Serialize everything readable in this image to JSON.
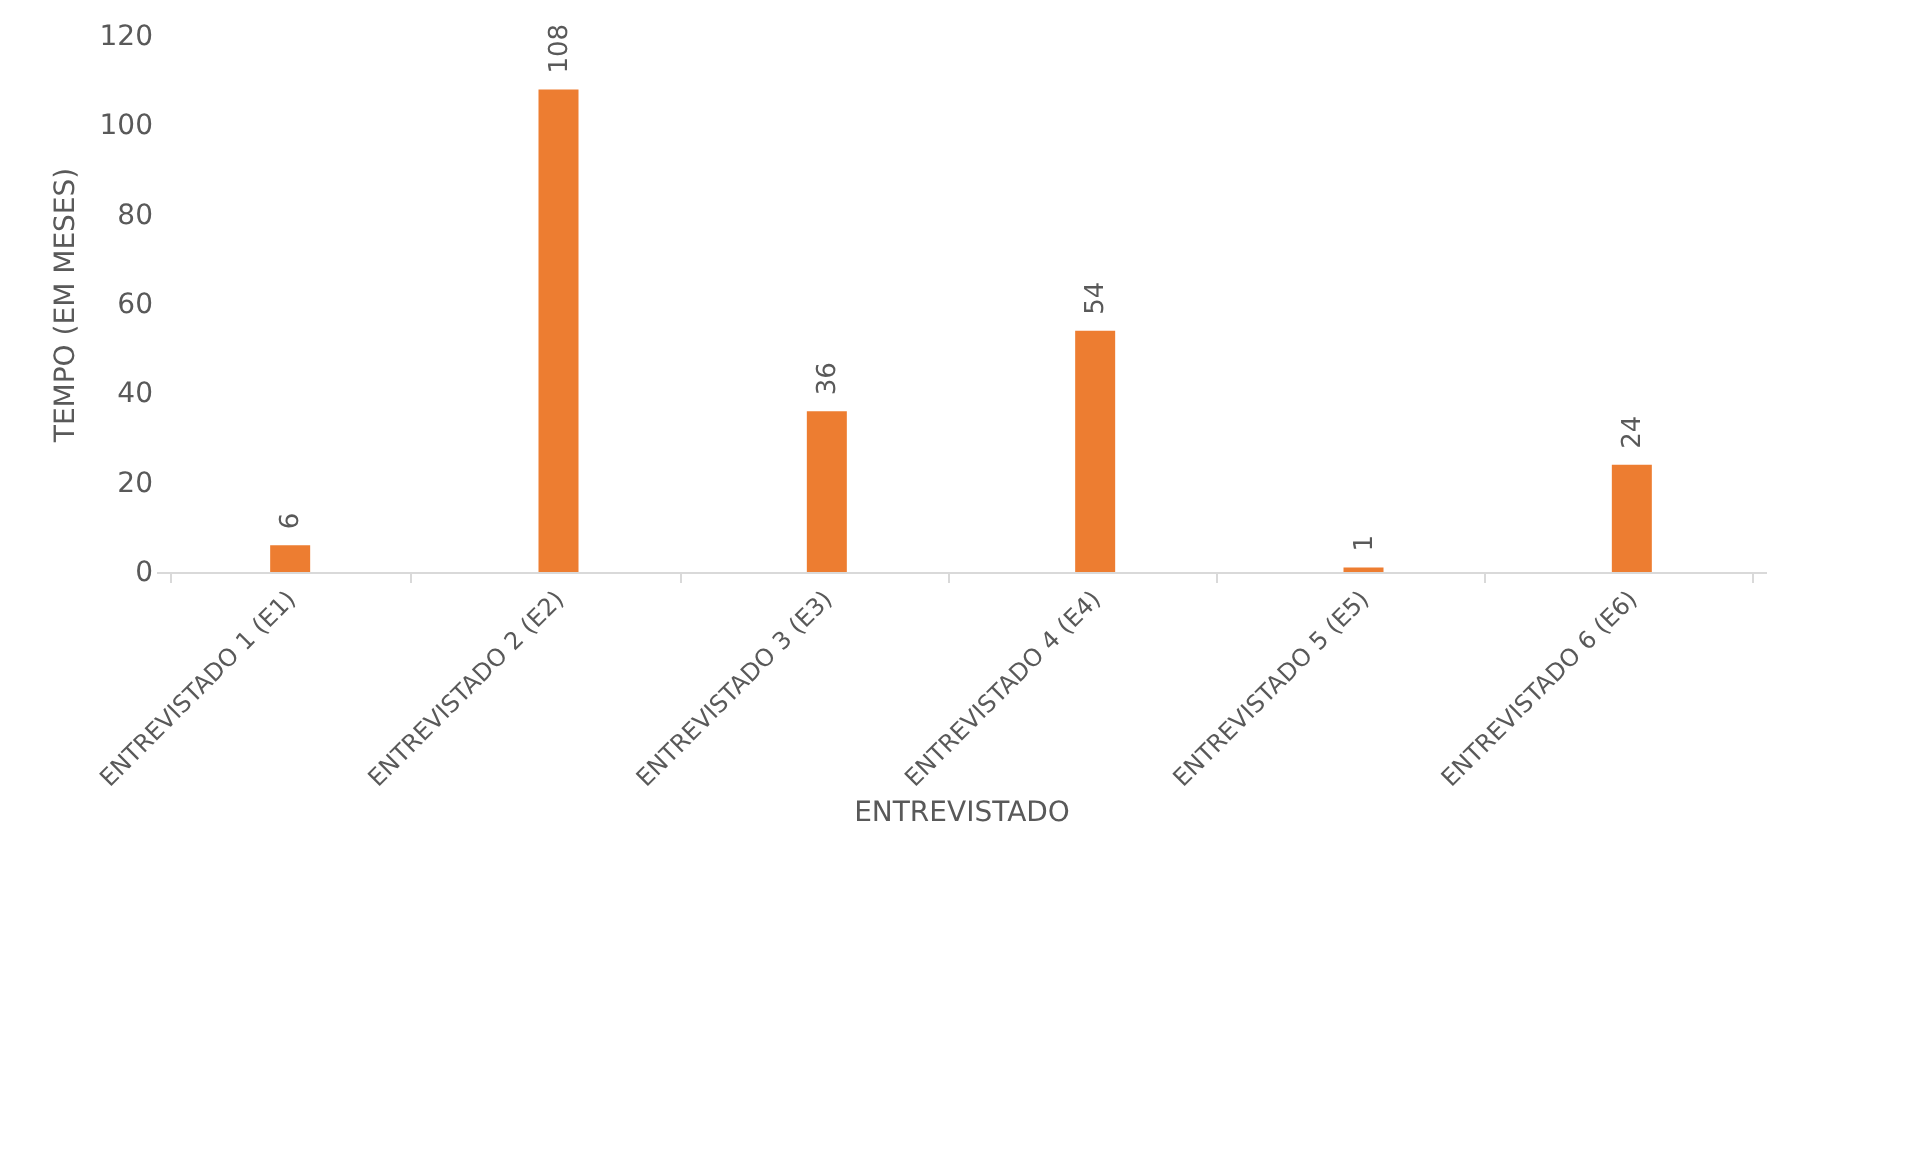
{
  "chart_data": {
    "type": "bar",
    "xlabel": "ENTREVISTADO",
    "ylabel": "TEMPO (EM MESES)",
    "categories": [
      "ENTREVISTADO 1 (E1)",
      "ENTREVISTADO 2 (E2)",
      "ENTREVISTADO 3 (E3)",
      "ENTREVISTADO 4 (E4)",
      "ENTREVISTADO 5 (E5)",
      "ENTREVISTADO 6 (E6)"
    ],
    "values": [
      6,
      108,
      36,
      54,
      1,
      24
    ],
    "color": "#ed7d31",
    "ylim": [
      0,
      120
    ],
    "yticks": [
      0,
      20,
      40,
      60,
      80,
      100,
      120
    ],
    "grid": false,
    "data_labels": true
  }
}
